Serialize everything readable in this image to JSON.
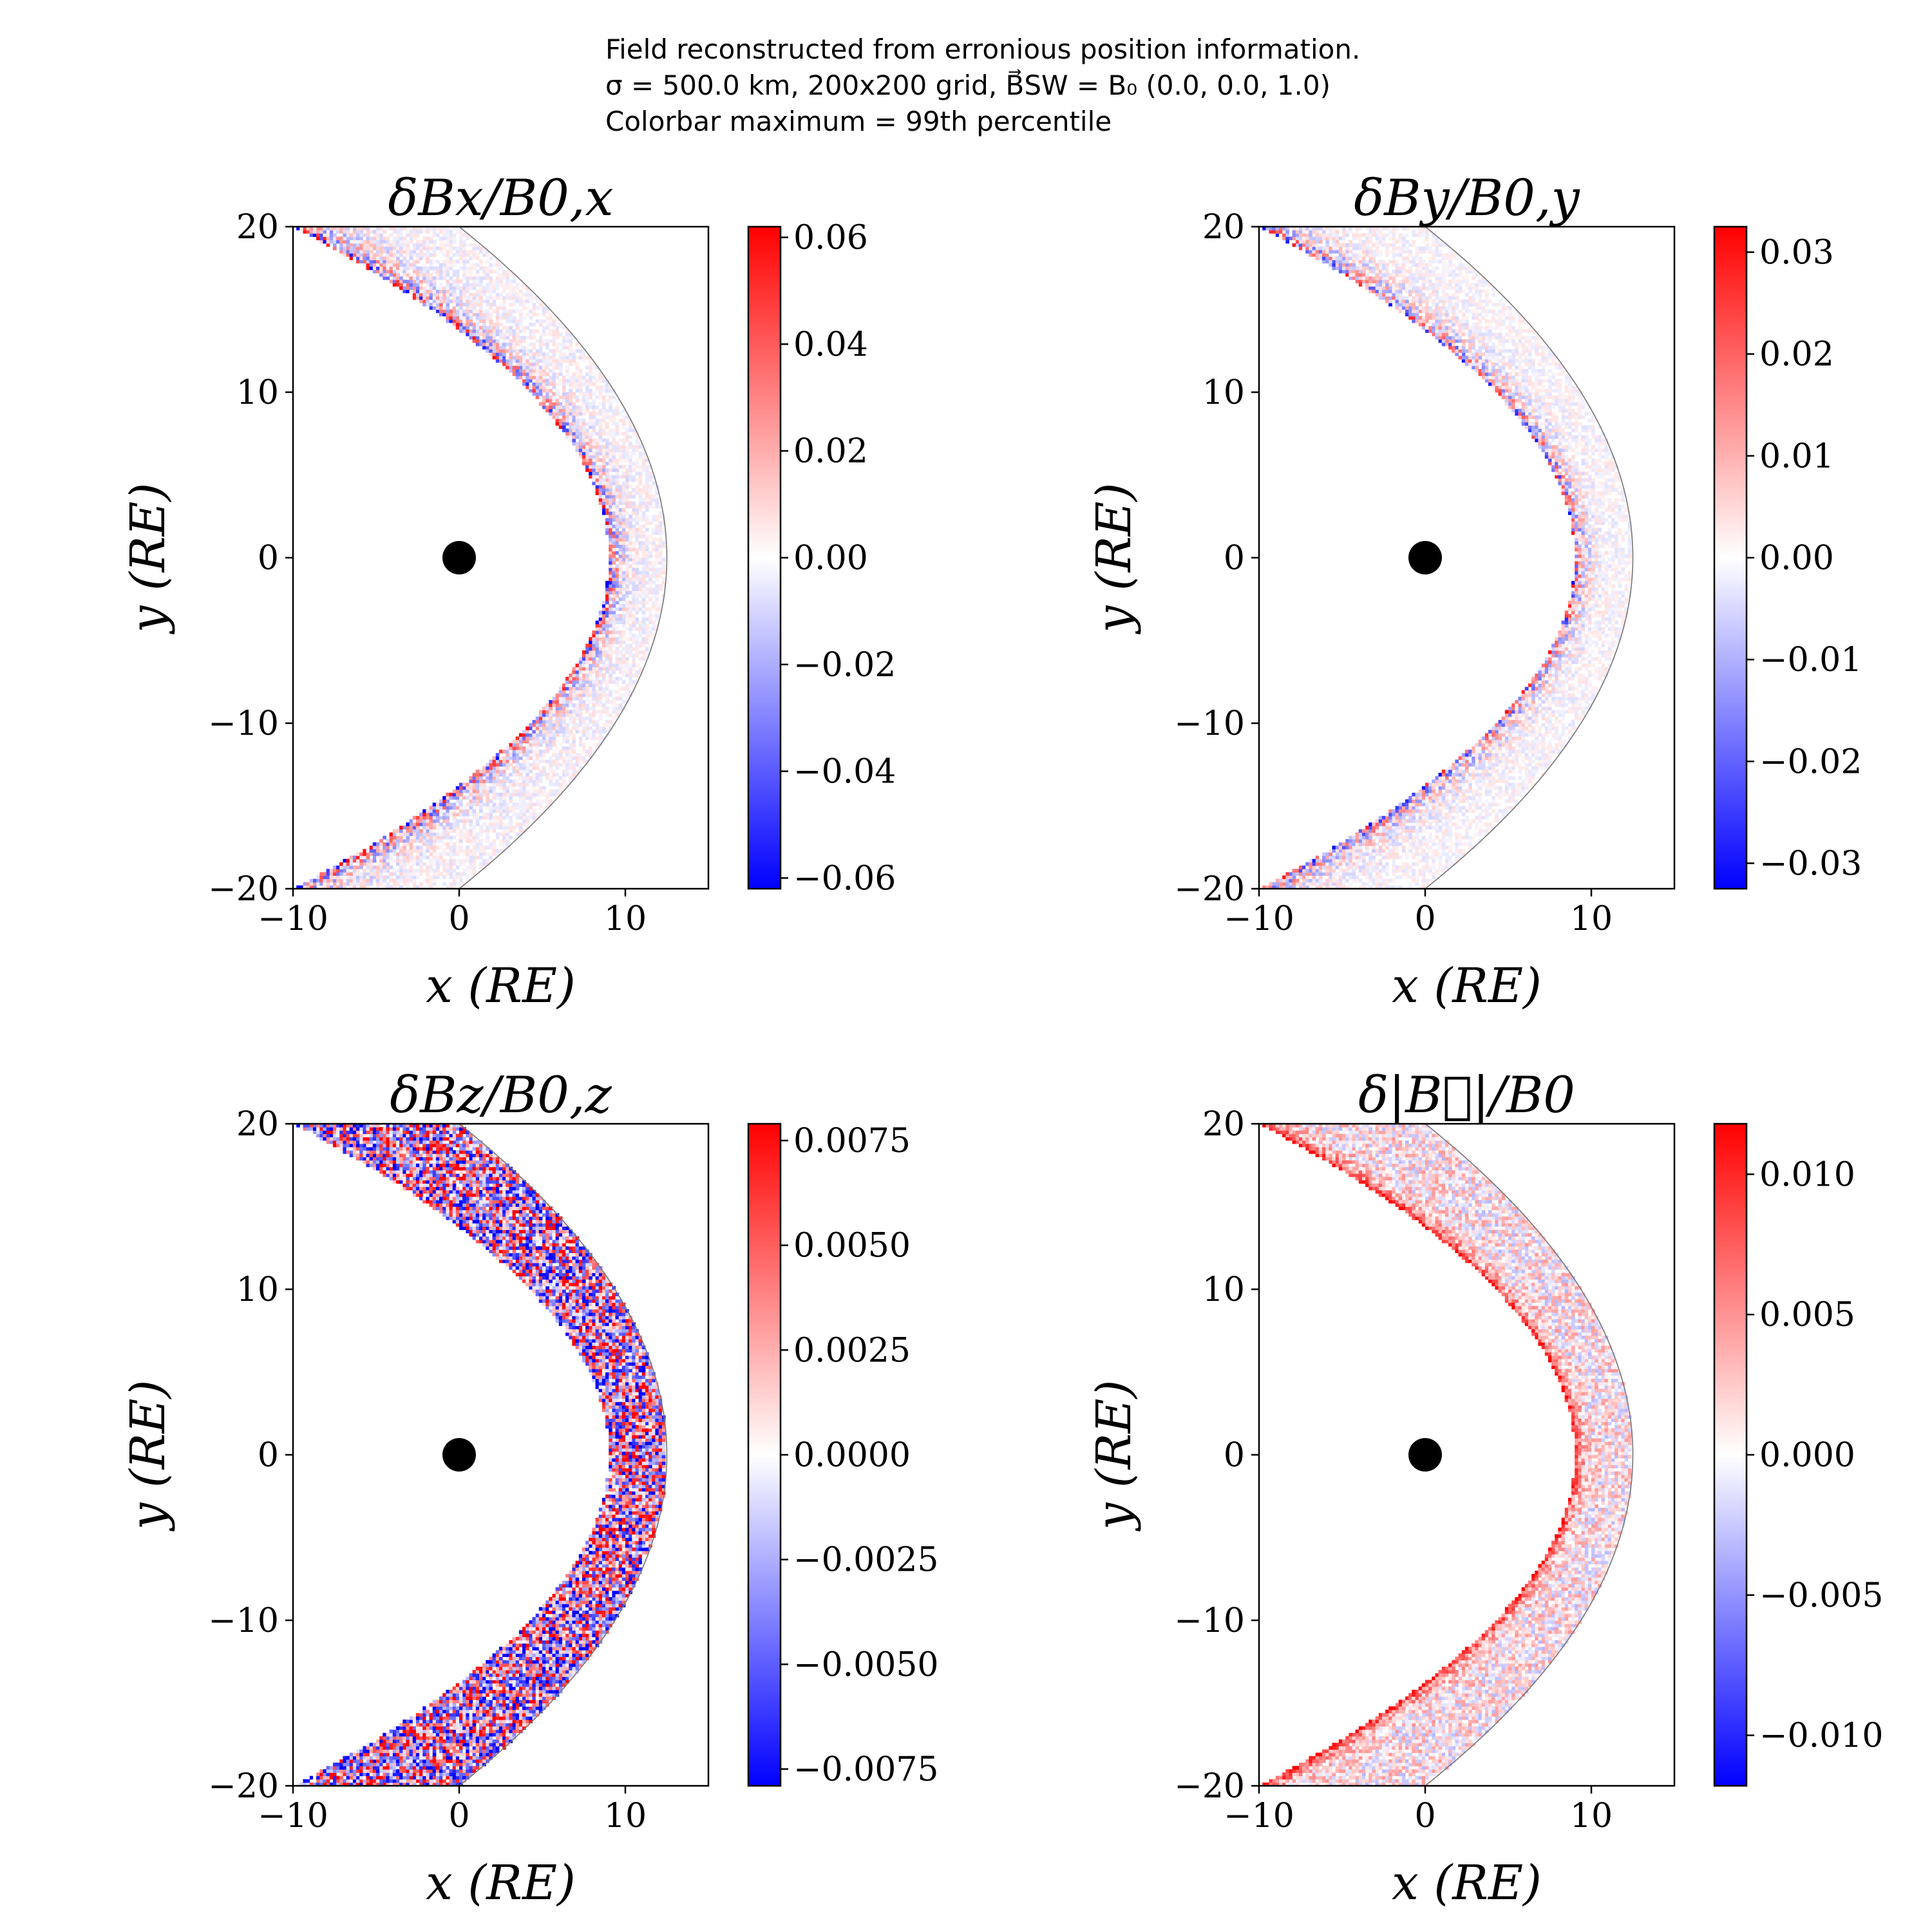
{
  "suptitle": {
    "line1": "Field reconstructed from erronious position information.",
    "line2": "σ = 500.0 km, 200x200 grid, B⃗SW = B₀ (0.0, 0.0, 1.0)",
    "line3": "Colorbar maximum = 99th percentile"
  },
  "colors": {
    "positive": "#ff0000",
    "negative": "#0000ff",
    "neutral": "#ffffff",
    "planet": "#000000",
    "boundary": "#777777"
  },
  "chart_data": [
    {
      "type": "heatmap",
      "title": "δBx/B0,x",
      "xlabel": "x (RE)",
      "ylabel": "y (RE)",
      "xlim": [
        -10,
        15
      ],
      "ylim": [
        -20,
        20
      ],
      "xticks": [
        "−10",
        "0",
        "10"
      ],
      "yticks": [
        "−20",
        "−10",
        "0",
        "10",
        "20"
      ],
      "colorbar": {
        "min": -0.062,
        "max": 0.062,
        "ticks": [
          0.06,
          0.04,
          0.02,
          0.0,
          -0.02,
          -0.04,
          -0.06
        ],
        "labels": [
          "0.06",
          "0.04",
          "0.02",
          "0.00",
          "−0.02",
          "−0.04",
          "−0.06"
        ]
      },
      "inner_boundary": {
        "nose_x": 9.0,
        "flank_x_at_y20": -10.0
      },
      "outer_boundary": {
        "nose_x": 12.5,
        "flank_x_at_y20": 0.0
      },
      "planet": {
        "x": 0,
        "y": 0
      },
      "pattern": "inner-edge",
      "amplitude": 1.0
    },
    {
      "type": "heatmap",
      "title": "δBy/B0,y",
      "xlabel": "x (RE)",
      "ylabel": "y (RE)",
      "xlim": [
        -10,
        15
      ],
      "ylim": [
        -20,
        20
      ],
      "xticks": [
        "−10",
        "0",
        "10"
      ],
      "yticks": [
        "−20",
        "−10",
        "0",
        "10",
        "20"
      ],
      "colorbar": {
        "min": -0.0325,
        "max": 0.0325,
        "ticks": [
          0.03,
          0.02,
          0.01,
          0.0,
          -0.01,
          -0.02,
          -0.03
        ],
        "labels": [
          "0.03",
          "0.02",
          "0.01",
          "0.00",
          "−0.01",
          "−0.02",
          "−0.03"
        ]
      },
      "inner_boundary": {
        "nose_x": 9.0,
        "flank_x_at_y20": -10.0
      },
      "outer_boundary": {
        "nose_x": 12.5,
        "flank_x_at_y20": 0.0
      },
      "planet": {
        "x": 0,
        "y": 0
      },
      "pattern": "inner-edge",
      "amplitude": 0.85
    },
    {
      "type": "heatmap",
      "title": "δBz/B0,z",
      "xlabel": "x (RE)",
      "ylabel": "y (RE)",
      "xlim": [
        -10,
        15
      ],
      "ylim": [
        -20,
        20
      ],
      "xticks": [
        "−10",
        "0",
        "10"
      ],
      "yticks": [
        "−20",
        "−10",
        "0",
        "10",
        "20"
      ],
      "colorbar": {
        "min": -0.0079,
        "max": 0.0079,
        "ticks": [
          0.0075,
          0.005,
          0.0025,
          0.0,
          -0.0025,
          -0.005,
          -0.0075
        ],
        "labels": [
          "0.0075",
          "0.0050",
          "0.0025",
          "0.0000",
          "−0.0025",
          "−0.0050",
          "−0.0075"
        ]
      },
      "inner_boundary": {
        "nose_x": 9.0,
        "flank_x_at_y20": -10.0
      },
      "outer_boundary": {
        "nose_x": 12.5,
        "flank_x_at_y20": 0.0
      },
      "planet": {
        "x": 0,
        "y": 0
      },
      "pattern": "uniform",
      "amplitude": 1.0
    },
    {
      "type": "heatmap",
      "title": "δ|B⃗|/B0",
      "xlabel": "x (RE)",
      "ylabel": "y (RE)",
      "xlim": [
        -10,
        15
      ],
      "ylim": [
        -20,
        20
      ],
      "xticks": [
        "−10",
        "0",
        "10"
      ],
      "yticks": [
        "−20",
        "−10",
        "0",
        "10",
        "20"
      ],
      "colorbar": {
        "min": -0.0118,
        "max": 0.0118,
        "ticks": [
          0.01,
          0.005,
          0.0,
          -0.005,
          -0.01
        ],
        "labels": [
          "0.010",
          "0.005",
          "0.000",
          "−0.005",
          "−0.010"
        ]
      },
      "inner_boundary": {
        "nose_x": 9.0,
        "flank_x_at_y20": -10.0
      },
      "outer_boundary": {
        "nose_x": 12.5,
        "flank_x_at_y20": 0.0
      },
      "planet": {
        "x": 0,
        "y": 0
      },
      "pattern": "positive-edge",
      "amplitude": 1.0
    }
  ]
}
